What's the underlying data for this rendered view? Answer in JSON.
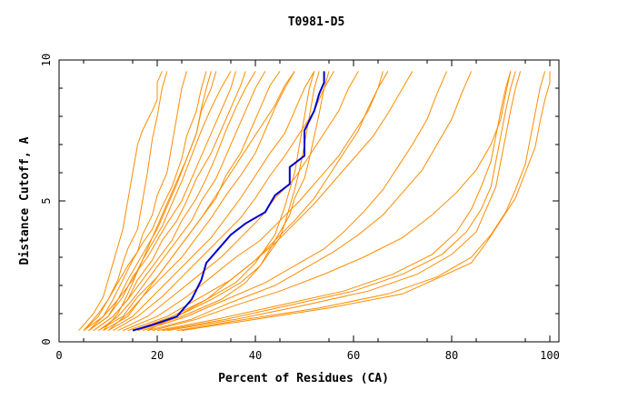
{
  "chart_data": {
    "type": "line",
    "title": "T0981-D5",
    "xlabel": "Percent of Residues (CA)",
    "ylabel": "Distance Cutoff, A",
    "xlim": [
      0,
      100
    ],
    "ylim": [
      0,
      10
    ],
    "x_ticks": [
      0,
      20,
      40,
      60,
      80,
      100
    ],
    "y_ticks": [
      0,
      5,
      10
    ],
    "grid": false,
    "colors": {
      "background_series": "#ff8c00",
      "highlight": "#0000cc",
      "axes": "#000000"
    },
    "highlight_series": {
      "x": [
        15,
        19,
        24,
        27,
        29,
        30,
        32,
        35,
        38,
        42,
        44,
        47,
        47,
        50,
        50,
        52,
        53,
        54,
        54
      ],
      "y": [
        0.4,
        0.6,
        0.9,
        1.5,
        2.2,
        2.8,
        3.2,
        3.8,
        4.2,
        4.6,
        5.2,
        5.6,
        6.2,
        6.6,
        7.5,
        8.2,
        8.8,
        9.2,
        9.6
      ]
    },
    "series": [
      {
        "x": [
          4,
          7,
          9,
          10,
          11,
          12,
          13,
          14,
          15,
          16,
          17,
          19,
          20,
          20,
          21
        ],
        "y": [
          0.4,
          1.0,
          1.6,
          2.2,
          2.8,
          3.4,
          4.0,
          5.0,
          6.0,
          7.0,
          7.5,
          8.2,
          8.6,
          9.2,
          9.6
        ]
      },
      {
        "x": [
          5,
          8,
          10,
          12,
          13,
          14,
          16,
          17,
          18,
          19,
          20,
          21,
          22
        ],
        "y": [
          0.4,
          1.0,
          1.5,
          2.2,
          2.8,
          3.3,
          4.0,
          5.0,
          6.0,
          7.2,
          8.0,
          9.0,
          9.6
        ]
      },
      {
        "x": [
          5,
          8,
          10,
          12,
          14,
          16,
          17,
          19,
          20,
          22,
          23,
          24,
          25,
          26
        ],
        "y": [
          0.4,
          0.9,
          1.5,
          2.1,
          2.7,
          3.2,
          3.8,
          4.5,
          5.2,
          6.0,
          7.0,
          8.0,
          9.0,
          9.6
        ]
      },
      {
        "x": [
          5,
          9,
          11,
          13,
          15,
          17,
          19,
          21,
          23,
          25,
          26,
          28,
          29,
          30
        ],
        "y": [
          0.4,
          0.9,
          1.5,
          2.2,
          2.9,
          3.5,
          4.0,
          4.8,
          5.5,
          6.5,
          7.3,
          8.2,
          9.0,
          9.6
        ]
      },
      {
        "x": [
          6,
          9,
          12,
          14,
          16,
          18,
          20,
          22,
          24,
          26,
          28,
          29,
          31,
          32
        ],
        "y": [
          0.4,
          0.9,
          1.5,
          2.2,
          2.8,
          3.4,
          4.0,
          4.8,
          5.6,
          6.5,
          7.4,
          8.2,
          9.0,
          9.6
        ]
      },
      {
        "x": [
          6,
          10,
          12,
          15,
          17,
          19,
          21,
          23,
          25,
          27,
          29,
          31,
          33,
          35
        ],
        "y": [
          0.4,
          0.9,
          1.5,
          2.2,
          2.9,
          3.5,
          4.1,
          4.9,
          5.7,
          6.6,
          7.5,
          8.3,
          9.0,
          9.6
        ]
      },
      {
        "x": [
          6,
          10,
          13,
          15,
          18,
          20,
          22,
          25,
          27,
          29,
          31,
          33,
          35,
          36
        ],
        "y": [
          0.4,
          0.9,
          1.6,
          2.3,
          3.0,
          3.6,
          4.2,
          5.0,
          5.8,
          6.6,
          7.4,
          8.2,
          9.0,
          9.6
        ]
      },
      {
        "x": [
          7,
          11,
          14,
          16,
          19,
          21,
          24,
          26,
          28,
          31,
          33,
          35,
          37,
          38
        ],
        "y": [
          0.4,
          0.9,
          1.5,
          2.2,
          2.9,
          3.6,
          4.3,
          5.0,
          5.8,
          6.7,
          7.5,
          8.3,
          9.1,
          9.6
        ]
      },
      {
        "x": [
          7,
          11,
          14,
          17,
          20,
          23,
          25,
          28,
          30,
          32,
          34,
          36,
          38,
          40
        ],
        "y": [
          0.4,
          0.9,
          1.5,
          2.2,
          2.9,
          3.6,
          4.3,
          5.1,
          5.8,
          6.6,
          7.5,
          8.3,
          9.0,
          9.6
        ]
      },
      {
        "x": [
          8,
          12,
          15,
          18,
          21,
          24,
          27,
          29,
          32,
          34,
          36,
          38,
          40,
          42
        ],
        "y": [
          0.4,
          0.9,
          1.5,
          2.2,
          2.9,
          3.6,
          4.3,
          5.0,
          5.8,
          6.6,
          7.4,
          8.2,
          9.0,
          9.6
        ]
      },
      {
        "x": [
          8,
          13,
          16,
          20,
          23,
          26,
          29,
          32,
          34,
          37,
          39,
          41,
          43,
          45
        ],
        "y": [
          0.4,
          0.9,
          1.6,
          2.3,
          3.0,
          3.7,
          4.4,
          5.1,
          5.9,
          6.7,
          7.5,
          8.3,
          9.1,
          9.6
        ]
      },
      {
        "x": [
          9,
          14,
          17,
          21,
          25,
          28,
          31,
          34,
          37,
          40,
          42,
          44,
          46,
          48
        ],
        "y": [
          0.4,
          0.9,
          1.6,
          2.3,
          3.0,
          3.7,
          4.4,
          5.2,
          5.9,
          6.7,
          7.5,
          8.3,
          9.0,
          9.6
        ]
      },
      {
        "x": [
          10,
          15,
          19,
          23,
          27,
          31,
          34,
          37,
          40,
          43,
          46,
          48,
          50,
          52
        ],
        "y": [
          0.4,
          0.9,
          1.6,
          2.3,
          3.0,
          3.7,
          4.4,
          5.1,
          5.9,
          6.7,
          7.4,
          8.2,
          9.0,
          9.6
        ]
      },
      {
        "x": [
          11,
          16,
          21,
          25,
          29,
          33,
          37,
          40,
          43,
          46,
          49,
          52,
          54,
          56
        ],
        "y": [
          0.4,
          0.9,
          1.6,
          2.3,
          3.0,
          3.7,
          4.4,
          5.1,
          5.9,
          6.6,
          7.4,
          8.2,
          9.0,
          9.6
        ]
      },
      {
        "x": [
          12,
          18,
          23,
          28,
          33,
          37,
          41,
          44,
          48,
          51,
          54,
          57,
          59,
          61
        ],
        "y": [
          0.4,
          0.9,
          1.6,
          2.3,
          3.0,
          3.7,
          4.4,
          5.1,
          5.8,
          6.6,
          7.4,
          8.2,
          9.0,
          9.6
        ]
      },
      {
        "x": [
          13,
          20,
          26,
          31,
          36,
          41,
          45,
          49,
          53,
          57,
          60,
          63,
          65,
          67
        ],
        "y": [
          0.4,
          0.9,
          1.6,
          2.3,
          3.0,
          3.6,
          4.3,
          5.0,
          5.8,
          6.6,
          7.4,
          8.2,
          9.0,
          9.6
        ]
      },
      {
        "x": [
          14,
          22,
          29,
          35,
          40,
          44,
          48,
          52,
          56,
          60,
          64,
          67,
          70,
          72
        ],
        "y": [
          0.4,
          0.9,
          1.6,
          2.2,
          2.9,
          3.5,
          4.2,
          4.9,
          5.7,
          6.5,
          7.3,
          8.1,
          9.0,
          9.6
        ]
      },
      {
        "x": [
          15,
          23,
          30,
          36,
          40,
          42,
          44,
          45,
          46,
          47,
          48,
          49,
          50,
          51,
          52
        ],
        "y": [
          0.4,
          0.9,
          1.5,
          2.1,
          2.8,
          3.3,
          3.8,
          4.3,
          4.8,
          5.4,
          6.0,
          7.0,
          8.0,
          9.0,
          9.6
        ]
      },
      {
        "x": [
          16,
          24,
          31,
          37,
          41,
          43,
          45,
          46,
          47,
          48,
          49,
          50,
          51,
          52,
          53
        ],
        "y": [
          0.4,
          0.9,
          1.5,
          2.1,
          2.7,
          3.2,
          3.7,
          4.2,
          4.8,
          5.4,
          6.1,
          7.0,
          8.0,
          9.0,
          9.6
        ]
      },
      {
        "x": [
          16,
          25,
          33,
          38,
          41,
          43,
          45,
          47,
          48,
          50,
          51,
          52,
          53,
          54,
          55
        ],
        "y": [
          0.4,
          0.9,
          1.5,
          2.1,
          2.7,
          3.3,
          3.9,
          4.5,
          5.1,
          5.8,
          6.5,
          7.3,
          8.1,
          9.0,
          9.6
        ]
      },
      {
        "x": [
          17,
          26,
          34,
          42,
          48,
          54,
          58,
          62,
          66,
          69,
          72,
          75,
          77,
          79
        ],
        "y": [
          0.4,
          0.9,
          1.5,
          2.1,
          2.7,
          3.3,
          3.9,
          4.6,
          5.4,
          6.2,
          7.0,
          7.9,
          8.8,
          9.6
        ]
      },
      {
        "x": [
          18,
          27,
          35,
          44,
          50,
          56,
          61,
          66,
          70,
          74,
          77,
          80,
          82,
          84
        ],
        "y": [
          0.4,
          0.8,
          1.4,
          2.0,
          2.6,
          3.2,
          3.8,
          4.5,
          5.3,
          6.1,
          7.0,
          7.9,
          8.8,
          9.6
        ]
      },
      {
        "x": [
          20,
          32,
          45,
          58,
          68,
          76,
          81,
          84,
          86,
          88,
          89,
          90,
          91,
          92
        ],
        "y": [
          0.4,
          0.8,
          1.3,
          1.8,
          2.4,
          3.1,
          3.9,
          4.7,
          5.5,
          6.4,
          7.3,
          8.2,
          9.0,
          9.6
        ]
      },
      {
        "x": [
          21,
          34,
          47,
          60,
          70,
          78,
          83,
          86,
          88,
          89,
          90,
          91,
          92,
          93
        ],
        "y": [
          0.4,
          0.8,
          1.3,
          1.8,
          2.4,
          3.1,
          3.9,
          4.7,
          5.5,
          6.4,
          7.3,
          8.2,
          9.0,
          9.6
        ]
      },
      {
        "x": [
          22,
          36,
          50,
          63,
          73,
          80,
          85,
          87,
          89,
          90,
          91,
          92,
          93,
          94
        ],
        "y": [
          0.4,
          0.8,
          1.3,
          1.8,
          2.4,
          3.1,
          3.9,
          4.7,
          5.5,
          6.4,
          7.3,
          8.2,
          9.0,
          9.6
        ]
      },
      {
        "x": [
          24,
          38,
          53,
          67,
          77,
          84,
          88,
          91,
          93,
          95,
          96,
          97,
          98,
          99
        ],
        "y": [
          0.4,
          0.8,
          1.2,
          1.7,
          2.3,
          3.0,
          3.8,
          4.6,
          5.4,
          6.3,
          7.2,
          8.1,
          9.0,
          9.6
        ]
      },
      {
        "x": [
          25,
          40,
          55,
          70,
          84,
          87,
          90,
          93,
          95,
          97,
          98,
          99,
          100,
          100
        ],
        "y": [
          0.4,
          0.8,
          1.2,
          1.7,
          2.8,
          3.5,
          4.3,
          5.1,
          6.0,
          6.9,
          7.8,
          8.6,
          9.2,
          9.6
        ]
      },
      {
        "x": [
          19,
          28,
          36,
          45,
          54,
          62,
          70,
          76,
          81,
          85,
          88,
          90,
          91,
          92
        ],
        "y": [
          0.4,
          0.8,
          1.3,
          1.8,
          2.4,
          3.0,
          3.7,
          4.5,
          5.3,
          6.1,
          7.0,
          7.9,
          8.8,
          9.6
        ]
      },
      {
        "x": [
          18,
          24,
          30,
          35,
          40,
          44,
          48,
          52,
          55,
          58,
          61,
          63,
          65,
          66
        ],
        "y": [
          0.4,
          0.9,
          1.5,
          2.2,
          2.9,
          3.6,
          4.3,
          5.1,
          5.9,
          6.7,
          7.5,
          8.3,
          9.0,
          9.6
        ]
      },
      {
        "x": [
          9,
          12,
          14,
          16,
          18,
          20,
          22,
          24,
          26,
          28,
          29,
          30,
          31
        ],
        "y": [
          0.4,
          1.0,
          1.7,
          2.5,
          3.3,
          4.1,
          4.9,
          5.7,
          6.5,
          7.4,
          8.3,
          9.0,
          9.6
        ]
      },
      {
        "x": [
          10,
          14,
          17,
          20,
          23,
          26,
          29,
          32,
          35,
          38,
          41,
          44,
          46,
          48
        ],
        "y": [
          0.4,
          1.0,
          1.6,
          2.3,
          3.0,
          3.7,
          4.4,
          5.2,
          6.0,
          6.8,
          7.6,
          8.4,
          9.1,
          9.6
        ]
      }
    ]
  }
}
